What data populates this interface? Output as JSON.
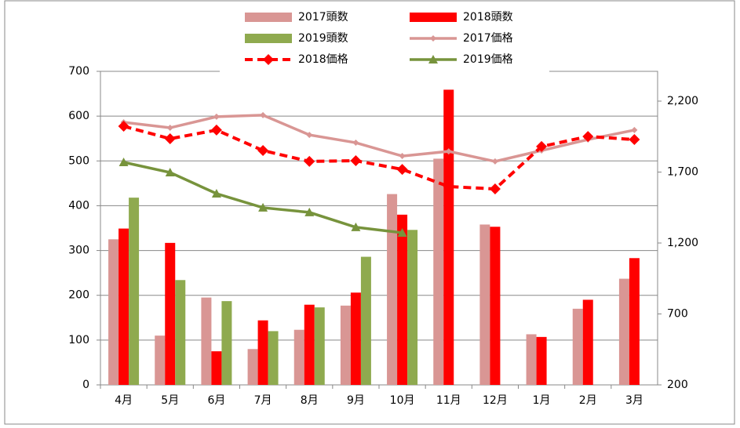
{
  "chart_data": {
    "type": "bar_line",
    "categories": [
      "4月",
      "5月",
      "6月",
      "7月",
      "8月",
      "9月",
      "10月",
      "11月",
      "12月",
      "1月",
      "2月",
      "3月"
    ],
    "series": [
      {
        "name": "2017頭数",
        "type": "bar",
        "axis": "y",
        "color": "#d99694",
        "values": [
          325,
          110,
          195,
          80,
          123,
          177,
          426,
          505,
          358,
          113,
          170,
          237
        ]
      },
      {
        "name": "2018頭数",
        "type": "bar",
        "axis": "y",
        "color": "#ff0000",
        "values": [
          349,
          317,
          75,
          144,
          179,
          206,
          380,
          659,
          353,
          107,
          190,
          283
        ]
      },
      {
        "name": "2019頭数",
        "type": "bar",
        "axis": "y",
        "color": "#8faa4f",
        "values": [
          418,
          234,
          187,
          120,
          173,
          286,
          346,
          null,
          null,
          null,
          null,
          null
        ]
      },
      {
        "name": "2017価格",
        "type": "line",
        "axis": "y2",
        "color": "#d99694",
        "marker": "diamond",
        "dash": false,
        "values": [
          2051,
          2012,
          2090,
          2101,
          1962,
          1907,
          1813,
          1846,
          1775,
          1852,
          1929,
          1996
        ]
      },
      {
        "name": "2018価格",
        "type": "line",
        "axis": "y2",
        "color": "#ff0000",
        "marker": "diamond",
        "dash": true,
        "values": [
          2023,
          1935,
          1996,
          1852,
          1775,
          1780,
          1719,
          1598,
          1581,
          1880,
          1951,
          1929
        ]
      },
      {
        "name": "2019価格",
        "type": "line",
        "axis": "y2",
        "color": "#77933c",
        "marker": "triangle",
        "dash": false,
        "values": [
          1769,
          1697,
          1548,
          1449,
          1416,
          1311,
          1272,
          null,
          null,
          null,
          null,
          null
        ]
      }
    ],
    "ylim": [
      0,
      700
    ],
    "yticks": [
      0,
      100,
      200,
      300,
      400,
      500,
      600,
      700
    ],
    "y2lim": [
      200,
      2410
    ],
    "y2ticks": [
      200,
      700,
      {
        "value": 1200,
        "label": "1,200"
      },
      {
        "value": 1700,
        "label": "1,700"
      },
      {
        "value": 2200,
        "label": "2,200"
      }
    ],
    "grid": true,
    "legend": "top"
  }
}
